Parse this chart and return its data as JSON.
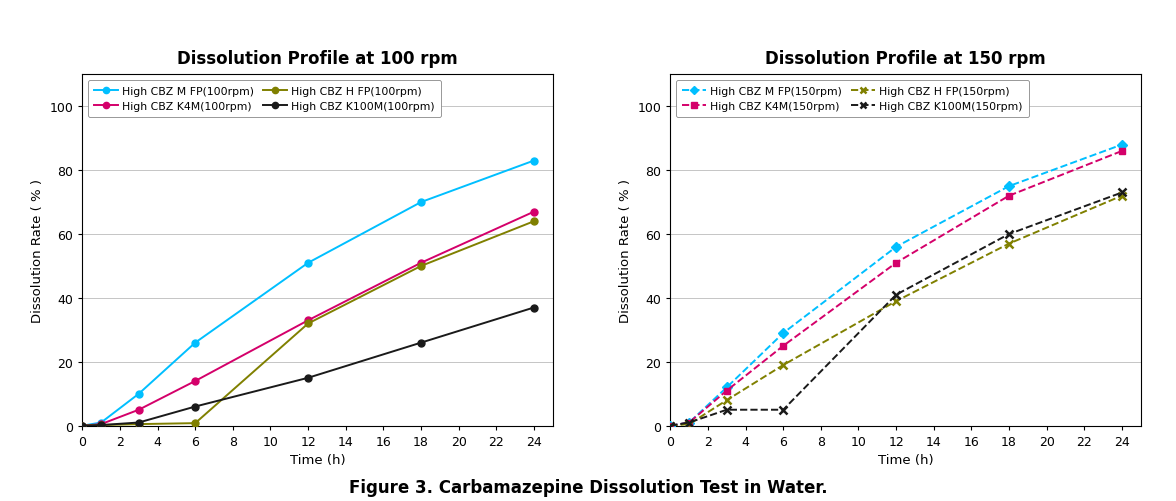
{
  "title_left": "Dissolution Profile at 100 rpm",
  "title_right": "Dissolution Profile at 150 rpm",
  "figure_caption": "Figure 3. Carbamazepine Dissolution Test in Water.",
  "xlabel": "Time (h)",
  "ylabel": "Dissolution Rate ( % )",
  "xlim": [
    0,
    25
  ],
  "ylim": [
    0,
    110
  ],
  "xticks": [
    0,
    2,
    4,
    6,
    8,
    10,
    12,
    14,
    16,
    18,
    20,
    22,
    24
  ],
  "yticks": [
    0,
    20,
    40,
    60,
    80,
    100
  ],
  "left_series": [
    {
      "label": "High CBZ M FP(100rpm)",
      "x": [
        0,
        1,
        3,
        6,
        12,
        18,
        24
      ],
      "y": [
        0,
        1,
        10,
        26,
        51,
        70,
        83
      ],
      "color": "#00BFFF",
      "linestyle": "-",
      "marker": "o",
      "markersize": 5
    },
    {
      "label": "High CBZ K4M(100rpm)",
      "x": [
        0,
        1,
        3,
        6,
        12,
        18,
        24
      ],
      "y": [
        0,
        0.5,
        5,
        14,
        33,
        51,
        67
      ],
      "color": "#D4006A",
      "linestyle": "-",
      "marker": "o",
      "markersize": 5
    },
    {
      "label": "High CBZ H FP(100rpm)",
      "x": [
        0,
        1,
        3,
        6,
        12,
        18,
        24
      ],
      "y": [
        0,
        0.2,
        0.5,
        0.8,
        32,
        50,
        64
      ],
      "color": "#808000",
      "linestyle": "-",
      "marker": "o",
      "markersize": 5
    },
    {
      "label": "High CBZ K100M(100rpm)",
      "x": [
        0,
        1,
        3,
        6,
        12,
        18,
        24
      ],
      "y": [
        0,
        0.2,
        1,
        6,
        15,
        26,
        37
      ],
      "color": "#1a1a1a",
      "linestyle": "-",
      "marker": "o",
      "markersize": 5
    }
  ],
  "right_series": [
    {
      "label": "High CBZ M FP(150rpm)",
      "x": [
        0,
        1,
        3,
        6,
        12,
        18,
        24
      ],
      "y": [
        0,
        1,
        12,
        29,
        56,
        75,
        88
      ],
      "color": "#00BFFF",
      "linestyle": "--",
      "marker": "D",
      "markersize": 5
    },
    {
      "label": "High CBZ K4M(150rpm)",
      "x": [
        0,
        1,
        3,
        6,
        12,
        18,
        24
      ],
      "y": [
        0,
        1,
        11,
        25,
        51,
        72,
        86
      ],
      "color": "#D4006A",
      "linestyle": "--",
      "marker": "s",
      "markersize": 5
    },
    {
      "label": "High CBZ H FP(150rpm)",
      "x": [
        0,
        1,
        3,
        6,
        12,
        18,
        24
      ],
      "y": [
        0,
        0.5,
        8,
        19,
        39,
        57,
        72
      ],
      "color": "#808000",
      "linestyle": "--",
      "marker": "x",
      "markersize": 6,
      "markeredgewidth": 1.8
    },
    {
      "label": "High CBZ K100M(150rpm)",
      "x": [
        0,
        1,
        3,
        6,
        12,
        18,
        24
      ],
      "y": [
        0,
        1,
        5,
        5,
        41,
        60,
        73
      ],
      "color": "#1a1a1a",
      "linestyle": "--",
      "marker": "x",
      "markersize": 6,
      "markeredgewidth": 1.8
    }
  ]
}
